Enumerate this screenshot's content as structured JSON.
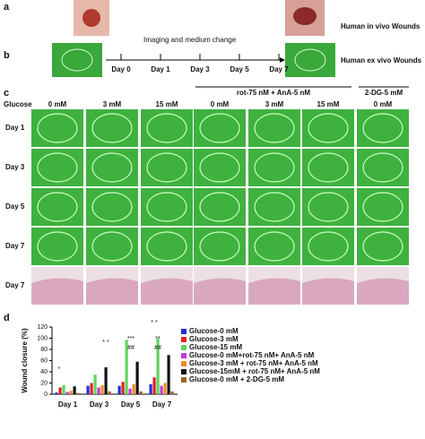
{
  "panels": {
    "a": {
      "label": "a",
      "text": "Human in  vivo Wounds"
    },
    "b": {
      "label": "b",
      "text": "Human ex  vivo Wounds",
      "timeline_title": "Imaging and medium change",
      "days": [
        "Day 0",
        "Day 1",
        "Day 3",
        "Day 5",
        "Day 7"
      ]
    },
    "c": {
      "label": "c",
      "row_header": "Glucose",
      "group_headers": [
        "rot-75 nM + AnA-5 nM",
        "2-DG-5 mM"
      ],
      "columns": [
        "0 mM",
        "3 mM",
        "15 mM",
        "0 mM",
        "3 mM",
        "15 mM",
        "0 mM"
      ],
      "rows": [
        "Day 1",
        "Day 3",
        "Day 5",
        "Day 7",
        "Day 7"
      ]
    },
    "d": {
      "label": "d"
    }
  },
  "chart_data": {
    "type": "bar",
    "y_label": "Wound closure (%)",
    "categories": [
      "Day 1",
      "Day 3",
      "Day 5",
      "Day 7"
    ],
    "ylim": [
      0,
      120
    ],
    "yticks": [
      0,
      20,
      40,
      60,
      80,
      100,
      120
    ],
    "series": [
      {
        "name": "Glucose-0 mM",
        "color": "#1f2fd6",
        "values": [
          3,
          15,
          15,
          18
        ]
      },
      {
        "name": "Glucose-3 mM",
        "color": "#e52020",
        "values": [
          12,
          20,
          22,
          30
        ]
      },
      {
        "name": "Glucose-15 mM",
        "color": "#5fd35f",
        "values": [
          16,
          35,
          97,
          100
        ]
      },
      {
        "name": "Glucose-0 mM+rot-75 nM+ AnA-5 nM",
        "color": "#c23ad6",
        "values": [
          4,
          12,
          10,
          15
        ]
      },
      {
        "name": "Glucose-3 mM + rot-75 nM+ AnA-5 nM",
        "color": "#f08a24",
        "values": [
          6,
          16,
          18,
          20
        ]
      },
      {
        "name": "Glucose-15mM + rot-75 nM+ AnA-5 nM",
        "color": "#111111",
        "values": [
          14,
          48,
          58,
          70
        ]
      },
      {
        "name": "Glucose-0 mM + 2-DG-5 mM",
        "color": "#a0632a",
        "values": [
          2,
          5,
          5,
          5
        ]
      }
    ],
    "annotations": [
      "*",
      "* *",
      "***",
      "##",
      "* *",
      "**",
      "##"
    ]
  }
}
